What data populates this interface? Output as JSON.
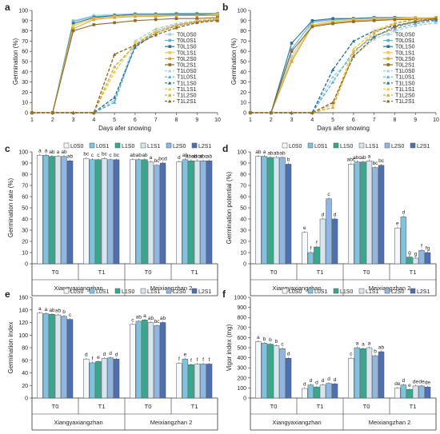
{
  "figure": {
    "panel_letters": [
      "a",
      "b",
      "c",
      "d",
      "e",
      "f"
    ],
    "days_xlabel": "Days afer snowing",
    "cultivars": [
      "Xiangyaxiangzhan",
      "Meixiangzhan 2"
    ],
    "treatments": [
      "T0",
      "T1"
    ]
  },
  "chart_data": [
    {
      "panel": "a",
      "type": "line",
      "xlabel": "Days afer snowing",
      "ylabel": "Germination (%)",
      "x": [
        1,
        2,
        3,
        4,
        5,
        6,
        7,
        8,
        9,
        10
      ],
      "xlim": [
        1,
        10
      ],
      "ylim": [
        0,
        100
      ],
      "yticks": [
        0,
        10,
        20,
        30,
        40,
        50,
        60,
        70,
        80,
        90,
        100
      ],
      "legend_position": "right",
      "series": [
        {
          "name": "T0L0S0",
          "color": "#a9cfe0",
          "dash": false,
          "marker": "square",
          "values": [
            0,
            0,
            90,
            95,
            96,
            97,
            97,
            97,
            97,
            97
          ]
        },
        {
          "name": "T0L0S1",
          "color": "#5fb2d2",
          "dash": false,
          "marker": "square",
          "values": [
            0,
            0,
            89,
            94,
            95,
            96,
            96,
            97,
            97,
            97
          ]
        },
        {
          "name": "T0L1S0",
          "color": "#2f6f9f",
          "dash": false,
          "marker": "square",
          "values": [
            0,
            0,
            87,
            93,
            95,
            96,
            96,
            96,
            96,
            96
          ]
        },
        {
          "name": "T0L1S1",
          "color": "#f2c94c",
          "dash": false,
          "marker": "square",
          "values": [
            0,
            0,
            85,
            92,
            94,
            95,
            95,
            95,
            95,
            96
          ]
        },
        {
          "name": "T0L2S0",
          "color": "#d8a93a",
          "dash": false,
          "marker": "square",
          "values": [
            0,
            0,
            82,
            91,
            93,
            94,
            94,
            95,
            95,
            95
          ]
        },
        {
          "name": "T0L2S1",
          "color": "#8c6a2f",
          "dash": false,
          "marker": "square",
          "values": [
            0,
            0,
            80,
            86,
            88,
            90,
            91,
            92,
            92,
            93
          ]
        },
        {
          "name": "T1L0S0",
          "color": "#a9cfe0",
          "dash": true,
          "marker": "triangle",
          "values": [
            0,
            0,
            0,
            0,
            12,
            70,
            82,
            87,
            90,
            92
          ]
        },
        {
          "name": "T1L0S1",
          "color": "#5fb2d2",
          "dash": true,
          "marker": "triangle",
          "values": [
            0,
            0,
            0,
            0,
            10,
            66,
            80,
            86,
            89,
            91
          ]
        },
        {
          "name": "T1L1S0",
          "color": "#2f6f9f",
          "dash": true,
          "marker": "triangle",
          "values": [
            0,
            0,
            0,
            0,
            15,
            64,
            78,
            85,
            89,
            91
          ]
        },
        {
          "name": "T1L1S1",
          "color": "#f2c94c",
          "dash": true,
          "marker": "triangle",
          "values": [
            0,
            0,
            0,
            0,
            40,
            68,
            80,
            86,
            90,
            92
          ]
        },
        {
          "name": "T1L2S0",
          "color": "#d8a93a",
          "dash": true,
          "marker": "triangle",
          "values": [
            0,
            0,
            0,
            0,
            45,
            66,
            78,
            85,
            89,
            91
          ]
        },
        {
          "name": "T1L2S1",
          "color": "#8c6a2f",
          "dash": true,
          "marker": "triangle",
          "values": [
            0,
            0,
            0,
            0,
            57,
            66,
            76,
            83,
            88,
            90
          ]
        }
      ]
    },
    {
      "panel": "b",
      "type": "line",
      "xlabel": "Days afer snowing",
      "ylabel": "Germination (%)",
      "x": [
        1,
        2,
        3,
        4,
        5,
        6,
        7,
        8,
        9,
        10
      ],
      "xlim": [
        1,
        10
      ],
      "ylim": [
        0,
        100
      ],
      "yticks": [
        0,
        10,
        20,
        30,
        40,
        50,
        60,
        70,
        80,
        90,
        100
      ],
      "legend_position": "right",
      "series": [
        {
          "name": "T0L0S0",
          "color": "#a9cfe0",
          "dash": false,
          "marker": "square",
          "values": [
            0,
            0,
            55,
            88,
            90,
            92,
            92,
            92,
            92,
            93
          ]
        },
        {
          "name": "T0L0S1",
          "color": "#5fb2d2",
          "dash": false,
          "marker": "square",
          "values": [
            0,
            0,
            62,
            89,
            91,
            92,
            93,
            93,
            93,
            93
          ]
        },
        {
          "name": "T0L1S0",
          "color": "#2f6f9f",
          "dash": false,
          "marker": "square",
          "values": [
            0,
            0,
            68,
            90,
            92,
            92,
            93,
            93,
            93,
            93
          ]
        },
        {
          "name": "T0L1S1",
          "color": "#f2c94c",
          "dash": false,
          "marker": "square",
          "values": [
            0,
            0,
            52,
            86,
            89,
            91,
            92,
            92,
            93,
            93
          ]
        },
        {
          "name": "T0L2S0",
          "color": "#d8a93a",
          "dash": false,
          "marker": "square",
          "values": [
            0,
            0,
            50,
            85,
            88,
            90,
            91,
            91,
            92,
            92
          ]
        },
        {
          "name": "T0L2S1",
          "color": "#8c6a2f",
          "dash": false,
          "marker": "square",
          "values": [
            0,
            0,
            60,
            84,
            87,
            89,
            90,
            91,
            91,
            92
          ]
        },
        {
          "name": "T1L0S0",
          "color": "#a9cfe0",
          "dash": true,
          "marker": "triangle",
          "values": [
            0,
            0,
            0,
            0,
            35,
            55,
            72,
            80,
            85,
            88
          ]
        },
        {
          "name": "T1L0S1",
          "color": "#5fb2d2",
          "dash": true,
          "marker": "triangle",
          "values": [
            0,
            0,
            0,
            0,
            30,
            60,
            75,
            82,
            87,
            90
          ]
        },
        {
          "name": "T1L1S0",
          "color": "#2f6f9f",
          "dash": true,
          "marker": "triangle",
          "values": [
            0,
            0,
            0,
            0,
            42,
            70,
            80,
            85,
            89,
            91
          ]
        },
        {
          "name": "T1L1S1",
          "color": "#f2c94c",
          "dash": true,
          "marker": "triangle",
          "values": [
            0,
            0,
            0,
            0,
            8,
            62,
            80,
            88,
            91,
            93
          ]
        },
        {
          "name": "T1L2S0",
          "color": "#d8a93a",
          "dash": true,
          "marker": "triangle",
          "values": [
            0,
            0,
            0,
            0,
            5,
            58,
            78,
            87,
            91,
            93
          ]
        },
        {
          "name": "T1L2S1",
          "color": "#8c6a2f",
          "dash": true,
          "marker": "triangle",
          "values": [
            0,
            0,
            0,
            0,
            10,
            55,
            74,
            84,
            89,
            92
          ]
        }
      ]
    },
    {
      "panel": "c",
      "type": "bar",
      "ylabel": "Germination rate (%)",
      "ylim": [
        0,
        100
      ],
      "yticks": [
        0,
        10,
        20,
        30,
        40,
        50,
        60,
        70,
        80,
        90,
        100
      ],
      "legend_position": "top",
      "series_names": [
        "L0S0",
        "L0S1",
        "L1S0",
        "L1S1",
        "L2S0",
        "L2S1"
      ],
      "colors": [
        "#f4f8fb",
        "#7fc3de",
        "#36a88e",
        "#d6e6ef",
        "#8fb7e3",
        "#4e6fb0"
      ],
      "groups": [
        {
          "cultivar": "Xiangyaxiangzhan",
          "treatment": "T0",
          "values": [
            97,
            97,
            96,
            96,
            96,
            92
          ],
          "letters": [
            "a",
            "a",
            "ab",
            "a",
            "ab",
            "ab"
          ]
        },
        {
          "cultivar": "Xiangyaxiangzhan",
          "treatment": "T1",
          "values": [
            94,
            93,
            93,
            94,
            93,
            93
          ],
          "letters": [
            "bc",
            "c",
            "c",
            "bc",
            "c",
            "bc"
          ]
        },
        {
          "cultivar": "Meixiangzhan 2",
          "treatment": "T0",
          "values": [
            93,
            93,
            93,
            91,
            88,
            90
          ],
          "letters": [
            "ab",
            "ab",
            "ab",
            "a",
            "bc",
            "bcd"
          ]
        },
        {
          "cultivar": "Meixiangzhan 2",
          "treatment": "T1",
          "values": [
            91,
            93,
            92,
            92,
            92,
            92
          ],
          "letters": [
            "d",
            "ab",
            "abcd",
            "abcd",
            "abc",
            "ab"
          ]
        }
      ]
    },
    {
      "panel": "d",
      "type": "bar",
      "ylabel": "Germination potential (%)",
      "ylim": [
        0,
        100
      ],
      "yticks": [
        0,
        10,
        20,
        30,
        40,
        50,
        60,
        70,
        80,
        90,
        100
      ],
      "legend_position": "top",
      "series_names": [
        "L0S0",
        "L0S1",
        "L1S0",
        "L1S1",
        "L2S0",
        "L2S1"
      ],
      "colors": [
        "#f4f8fb",
        "#7fc3de",
        "#36a88e",
        "#d6e6ef",
        "#8fb7e3",
        "#4e6fb0"
      ],
      "groups": [
        {
          "cultivar": "Xiangyaxiangzhan",
          "treatment": "T0",
          "values": [
            96,
            96,
            95,
            95,
            95,
            89
          ],
          "letters": [
            "ab",
            "a",
            "ab",
            "ab",
            "ab",
            "b"
          ]
        },
        {
          "cultivar": "Xiangyaxiangzhan",
          "treatment": "T1",
          "values": [
            28,
            10,
            15,
            40,
            58,
            40
          ],
          "letters": [
            "e",
            "f",
            "f",
            "d",
            "c",
            "d"
          ]
        },
        {
          "cultivar": "Meixiangzhan 2",
          "treatment": "T0",
          "values": [
            89,
            91,
            91,
            92,
            86,
            88
          ],
          "letters": [
            "abc",
            "abc",
            "ab",
            "a",
            "bc",
            "bc"
          ]
        },
        {
          "cultivar": "Meixiangzhan 2",
          "treatment": "T1",
          "values": [
            32,
            42,
            6,
            5,
            12,
            10
          ],
          "letters": [
            "e",
            "d",
            "g",
            "g",
            "f",
            "fg"
          ]
        }
      ]
    },
    {
      "panel": "e",
      "type": "bar",
      "ylabel": "Germination index",
      "ylim": [
        0,
        160
      ],
      "yticks": [
        0,
        20,
        40,
        60,
        80,
        100,
        120,
        140,
        160
      ],
      "legend_position": "top",
      "series_names": [
        "L0S0",
        "L0S1",
        "L1S0",
        "L1S1",
        "L2S0",
        "L2S1"
      ],
      "colors": [
        "#f4f8fb",
        "#7fc3de",
        "#36a88e",
        "#d6e6ef",
        "#8fb7e3",
        "#4e6fb0"
      ],
      "groups": [
        {
          "cultivar": "Xiangyaxiangzhan",
          "treatment": "T0",
          "values": [
            135,
            134,
            133,
            132,
            130,
            125
          ],
          "letters": [
            "a",
            "a",
            "ab",
            "ab",
            "b",
            "c"
          ]
        },
        {
          "cultivar": "Xiangyaxiangzhan",
          "treatment": "T1",
          "values": [
            62,
            56,
            58,
            63,
            64,
            62
          ],
          "letters": [
            "d",
            "f",
            "e",
            "d",
            "d",
            "d"
          ]
        },
        {
          "cultivar": "Meixiangzhan 2",
          "treatment": "T0",
          "values": [
            117,
            122,
            124,
            120,
            115,
            120
          ],
          "letters": [
            "c",
            "ab",
            "a",
            "ab",
            "bc",
            "ab"
          ]
        },
        {
          "cultivar": "Meixiangzhan 2",
          "treatment": "T1",
          "values": [
            55,
            62,
            53,
            54,
            54,
            54
          ],
          "letters": [
            "f",
            "e",
            "f",
            "f",
            "f",
            "f"
          ]
        }
      ]
    },
    {
      "panel": "f",
      "type": "bar",
      "ylabel": "Vigor index (mg)",
      "ylim": [
        0,
        1000
      ],
      "yticks": [
        0,
        100,
        200,
        300,
        400,
        500,
        600,
        700,
        800,
        900,
        1000
      ],
      "legend_position": "top",
      "series_names": [
        "L0S0",
        "L0S1",
        "L1S0",
        "L1S1",
        "L2S0",
        "L2S1"
      ],
      "colors": [
        "#f4f8fb",
        "#7fc3de",
        "#36a88e",
        "#d6e6ef",
        "#8fb7e3",
        "#4e6fb0"
      ],
      "groups": [
        {
          "cultivar": "Xiangyaxiangzhan",
          "treatment": "T0",
          "values": [
            560,
            545,
            535,
            520,
            490,
            395
          ],
          "letters": [
            "a",
            "b",
            "b",
            "b",
            "c",
            "d"
          ]
        },
        {
          "cultivar": "Xiangyaxiangzhan",
          "treatment": "T1",
          "values": [
            95,
            130,
            110,
            130,
            145,
            140
          ],
          "letters": [
            "d",
            "d",
            "d",
            "d",
            "d",
            "d"
          ]
        },
        {
          "cultivar": "Meixiangzhan 2",
          "treatment": "T0",
          "values": [
            395,
            500,
            490,
            500,
            420,
            460
          ],
          "letters": [
            "c",
            "a",
            "a",
            "a",
            "b",
            "ab"
          ]
        },
        {
          "cultivar": "Meixiangzhan 2",
          "treatment": "T1",
          "values": [
            100,
            130,
            85,
            120,
            120,
            110
          ],
          "letters": [
            "de",
            "d",
            "e",
            "de",
            "de",
            "de"
          ]
        }
      ]
    }
  ]
}
